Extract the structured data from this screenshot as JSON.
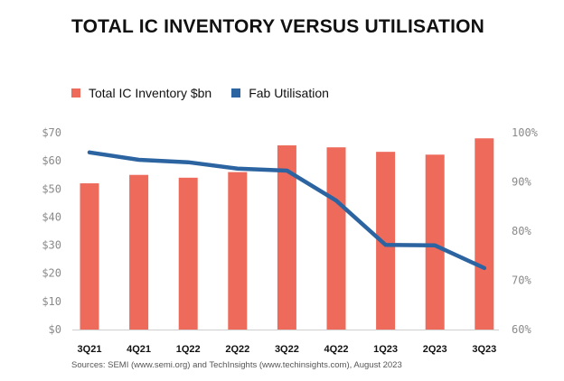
{
  "chart_data": {
    "type": "bar",
    "title": "TOTAL IC INVENTORY VERSUS UTILISATION",
    "categories": [
      "3Q21",
      "4Q21",
      "1Q22",
      "2Q22",
      "3Q22",
      "4Q22",
      "1Q23",
      "2Q23",
      "3Q23"
    ],
    "series": [
      {
        "name": "Total IC Inventory $bn",
        "type": "bar",
        "axis": "left",
        "color": "#ee6a5b",
        "values": [
          52,
          55,
          54,
          56,
          65.5,
          64.8,
          63.2,
          62.2,
          68
        ]
      },
      {
        "name": "Fab Utilisation",
        "type": "line",
        "axis": "right",
        "color": "#2b64a0",
        "values": [
          96,
          94.5,
          94,
          92.7,
          92.3,
          86.2,
          77.2,
          77.1,
          72.5
        ]
      }
    ],
    "y_left": {
      "ylim": [
        0,
        70
      ],
      "ticks": [
        "$0",
        "$10",
        "$20",
        "$30",
        "$40",
        "$50",
        "$60",
        "$70"
      ]
    },
    "y_right": {
      "ylim": [
        60,
        100
      ],
      "ticks": [
        "60%",
        "70%",
        "80%",
        "90%",
        "100%"
      ]
    },
    "legend_position": "top-left",
    "grid": false,
    "source": "Sources: SEMI (www.semi.org) and TechInsights (www.techinsights.com), August 2023"
  }
}
